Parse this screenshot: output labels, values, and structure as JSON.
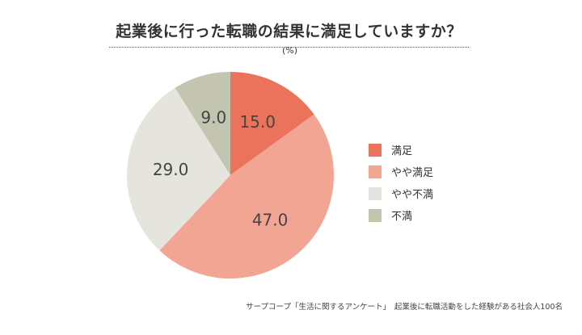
{
  "header": {
    "title": "起業後に行った転職の結果に満足していますか？",
    "unit": "(%)"
  },
  "chart_data": {
    "type": "pie",
    "title": "起業後に行った転職の結果に満足していますか？",
    "unit": "(%)",
    "slices": [
      {
        "name": "満足",
        "value": 15.0,
        "label": "15.0",
        "color": "#ec735b"
      },
      {
        "name": "やや満足",
        "value": 47.0,
        "label": "47.0",
        "color": "#f3a594"
      },
      {
        "name": "やや不満",
        "value": 29.0,
        "label": "29.0",
        "color": "#e6e5dd"
      },
      {
        "name": "不満",
        "value": 9.0,
        "label": "9.0",
        "color": "#c3c5b1"
      }
    ],
    "legend_placement": "right"
  },
  "footer": {
    "source": "サープコープ「生活に関するアンケート」　起業後に転職活動をした経験がある社会人100名"
  }
}
